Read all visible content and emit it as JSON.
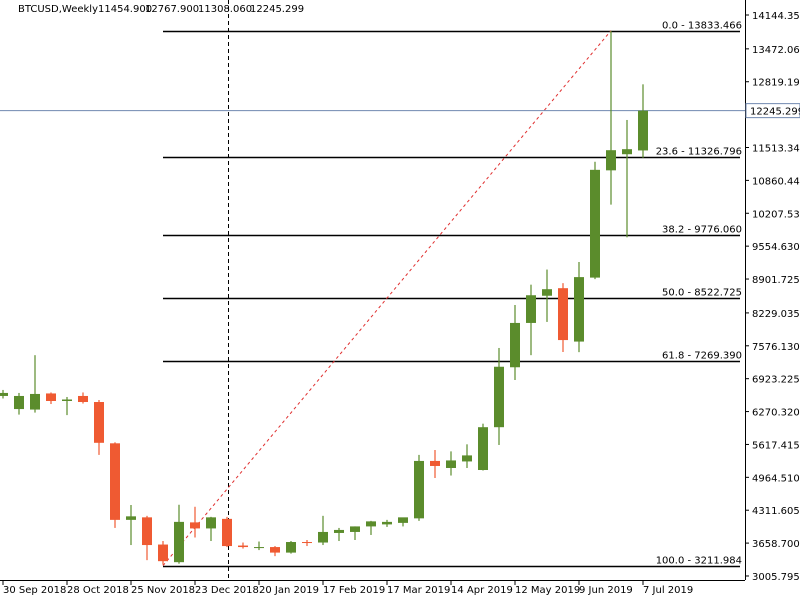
{
  "header": {
    "symbol": "BTCUSD,Weekly",
    "open": "11454.900",
    "high": "12767.900",
    "low": "11308.060",
    "close": "12245.299"
  },
  "chart_data": {
    "type": "candlestick",
    "categories": [
      "30 Sep 2018",
      null,
      null,
      null,
      "28 Oct 2018",
      null,
      null,
      null,
      "25 Nov 2018",
      null,
      null,
      null,
      "23 Dec 2018",
      null,
      null,
      null,
      "20 Jan 2019",
      null,
      null,
      null,
      "17 Feb 2019",
      null,
      null,
      null,
      "17 Mar 2019",
      null,
      null,
      null,
      "14 Apr 2019",
      null,
      null,
      null,
      "12 May 2019",
      null,
      null,
      null,
      "9 Jun 2019",
      null,
      null,
      null,
      "7 Jul 2019"
    ],
    "open": [
      6580,
      6320,
      6310,
      6630,
      6480,
      6580,
      6460,
      5640,
      4120,
      4170,
      3630,
      3280,
      4070,
      3950,
      4140,
      3610,
      3560,
      3580,
      3470,
      3680,
      3670,
      3860,
      3880,
      3990,
      4030,
      4060,
      4150,
      5290,
      5150,
      5280,
      5110,
      5960,
      7150,
      8030,
      8570,
      8720,
      7660,
      8930,
      11060,
      11380,
      11454.9
    ],
    "high": [
      6700,
      6640,
      7390,
      6650,
      6560,
      6650,
      6500,
      5660,
      4415,
      4200,
      3700,
      4420,
      4380,
      4180,
      4180,
      3670,
      3690,
      3600,
      3700,
      3720,
      4200,
      3960,
      3990,
      4100,
      4120,
      4150,
      5410,
      5507,
      5480,
      5620,
      6030,
      7533,
      8386,
      8790,
      9090,
      8820,
      9240,
      11230,
      13830,
      12060,
      12767.9
    ],
    "low": [
      6530,
      6210,
      6250,
      6420,
      6200,
      6430,
      5410,
      3960,
      3620,
      3320,
      3230,
      3250,
      3770,
      3700,
      3580,
      3550,
      3520,
      3400,
      3450,
      3600,
      3620,
      3700,
      3720,
      3820,
      3980,
      3990,
      4100,
      4951,
      5000,
      5150,
      5100,
      5607,
      6897,
      7390,
      8050,
      7453,
      7450,
      8900,
      10380,
      9730,
      11308.06
    ],
    "close": [
      6640,
      6580,
      6620,
      6480,
      6510,
      6460,
      5650,
      4120,
      4190,
      3620,
      3300,
      4080,
      3950,
      4170,
      3600,
      3580,
      3580,
      3470,
      3680,
      3670,
      3880,
      3920,
      3990,
      4090,
      4080,
      4170,
      5290,
      5190,
      5300,
      5400,
      5960,
      7160,
      8030,
      8580,
      8700,
      7690,
      8940,
      11070,
      11460,
      11480,
      12245.299
    ],
    "up_color": "#5b8c2c",
    "down_color": "#ef5a32",
    "ylim": [
      2926,
      14442
    ],
    "yticks": [
      {
        "value": 14144.35,
        "label": "14144.350"
      },
      {
        "value": 13472.06,
        "label": "13472.060"
      },
      {
        "value": 12819.195,
        "label": "12819.195"
      },
      {
        "value": 11513.345,
        "label": "11513.345"
      },
      {
        "value": 10860.44,
        "label": "10860.440"
      },
      {
        "value": 10207.535,
        "label": "10207.535"
      },
      {
        "value": 9554.63,
        "label": "9554.630"
      },
      {
        "value": 8901.725,
        "label": "8901.725"
      },
      {
        "value": 8229.035,
        "label": "8229.035"
      },
      {
        "value": 7576.13,
        "label": "7576.130"
      },
      {
        "value": 6923.225,
        "label": "6923.225"
      },
      {
        "value": 6270.32,
        "label": "6270.320"
      },
      {
        "value": 5617.415,
        "label": "5617.415"
      },
      {
        "value": 4964.51,
        "label": "4964.510"
      },
      {
        "value": 4311.605,
        "label": "4311.605"
      },
      {
        "value": 3658.7,
        "label": "3658.700"
      },
      {
        "value": 3005.795,
        "label": "3005.795"
      }
    ],
    "current_price": 12245.299,
    "fib": [
      {
        "label": "0.0 - 13833.466",
        "price": 13833.466
      },
      {
        "label": "23.6 - 11326.796",
        "price": 11326.796
      },
      {
        "label": "38.2 - 9776.060",
        "price": 9776.06
      },
      {
        "label": "50.0 - 8522.725",
        "price": 8522.725
      },
      {
        "label": "61.8 - 7269.390",
        "price": 7269.39
      },
      {
        "label": "100.0 - 3211.984",
        "price": 3211.984
      }
    ]
  }
}
